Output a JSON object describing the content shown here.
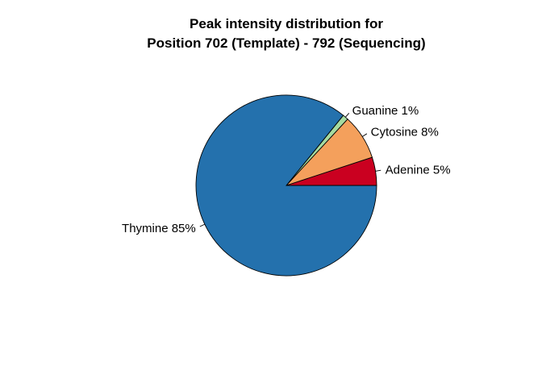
{
  "chart_data": {
    "type": "pie",
    "title": [
      "Peak intensity distribution for",
      "Position 702 (Template) - 792 (Sequencing)"
    ],
    "slices": [
      {
        "label": "Adenine 5%",
        "value": 5,
        "color": "#ca0020"
      },
      {
        "label": "Cytosine 8%",
        "value": 8,
        "color": "#f4a05c"
      },
      {
        "label": "Guanine 1%",
        "value": 1,
        "color": "#a6dba0"
      },
      {
        "label": "Thymine 85%",
        "value": 85,
        "color": "#2471ad"
      }
    ],
    "start_angle_deg": 0,
    "direction": "counterclockwise"
  }
}
